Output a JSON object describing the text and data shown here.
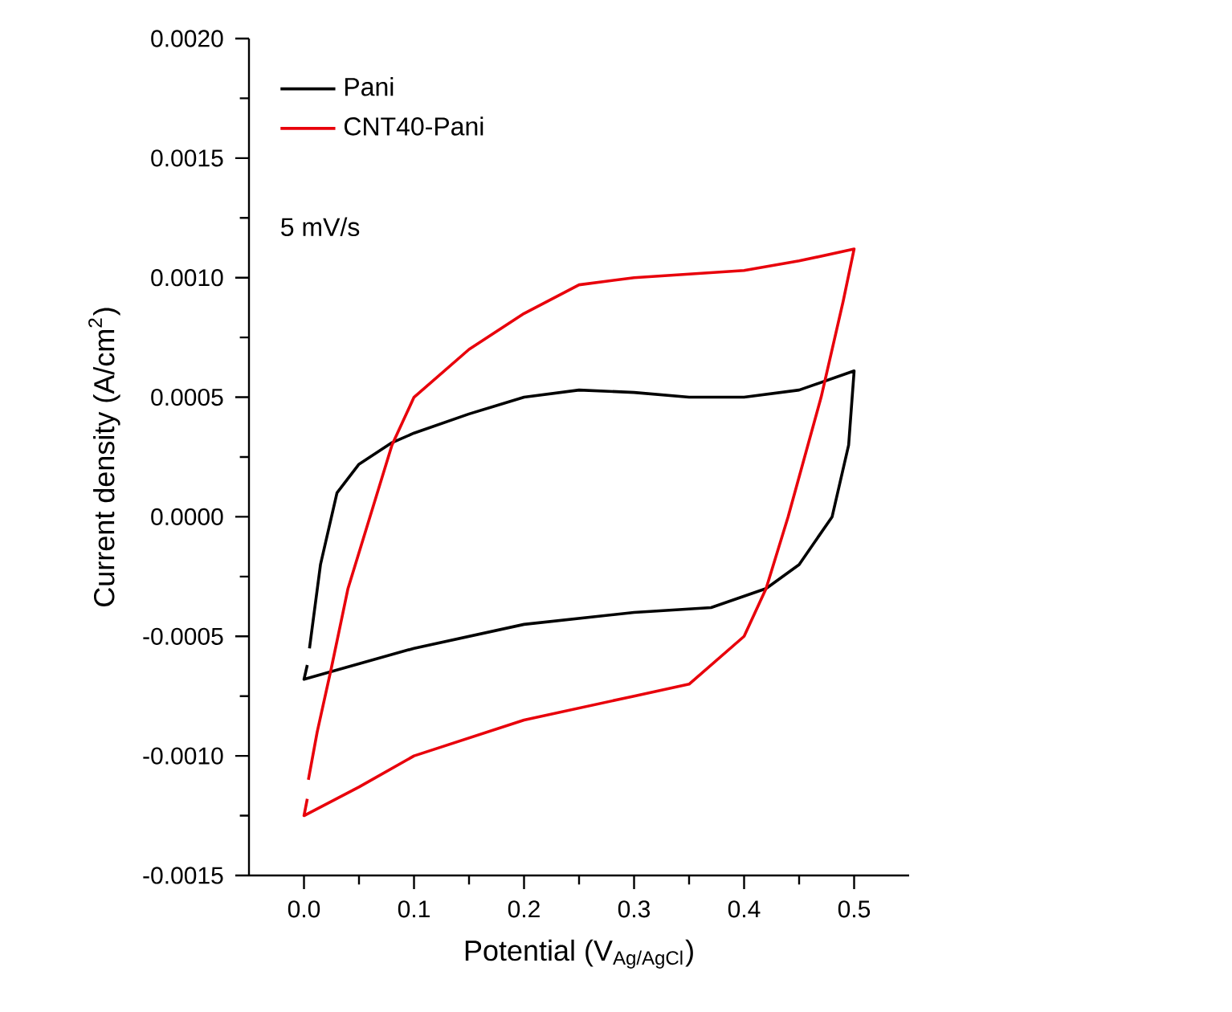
{
  "chart_data": {
    "type": "line",
    "xlabel": "Potential (V$_{Ag/AgCl}$)",
    "ylabel": "Current density (A/cm$^{2}$)",
    "annotations": [
      "5 mV/s"
    ],
    "xlim": [
      -0.05,
      0.55
    ],
    "xticks": [
      {
        "value": 0,
        "label": "0.0"
      },
      0.1,
      0.2,
      0.3,
      0.4,
      0.5
    ],
    "ylim": [
      -0.0015,
      0.002
    ],
    "yticks": [
      {
        "value": -0.0015,
        "label": "-0.0015"
      },
      {
        "value": -0.001,
        "label": "-0.0010"
      },
      {
        "value": -0.0005,
        "label": "-0.0005"
      },
      {
        "value": 0,
        "label": "0.0000"
      },
      {
        "value": 0.0005,
        "label": "0.0005"
      },
      {
        "value": 0.001,
        "label": "0.0010"
      },
      {
        "value": 0.0015,
        "label": "0.0015"
      },
      {
        "value": 0.002,
        "label": "0.0020"
      }
    ],
    "legend": "top left",
    "grid": false,
    "marker": "none",
    "line_style": "solid",
    "series": [
      {
        "name": "Pani",
        "color": "#000000",
        "x": [
          0.003,
          0.0,
          0.1,
          0.2,
          0.3,
          0.37,
          0.42,
          0.45,
          0.48,
          0.495,
          0.5,
          0.45,
          0.4,
          0.35,
          0.3,
          0.25,
          0.2,
          0.15,
          0.1,
          0.08,
          0.05,
          0.03,
          0.015,
          0.005
        ],
        "values": [
          -0.00062,
          -0.00068,
          -0.00055,
          -0.00045,
          -0.0004,
          -0.00038,
          -0.0003,
          -0.0002,
          0.0,
          0.0003,
          0.00061,
          0.00053,
          0.0005,
          0.0005,
          0.00052,
          0.00053,
          0.0005,
          0.00043,
          0.00035,
          0.00031,
          0.00022,
          0.0001,
          -0.0002,
          -0.00055
        ]
      },
      {
        "name": "CNT40-Pani",
        "color": "#e8000b",
        "x": [
          0.003,
          0.0,
          0.05,
          0.1,
          0.2,
          0.3,
          0.35,
          0.4,
          0.42,
          0.44,
          0.47,
          0.49,
          0.5,
          0.45,
          0.4,
          0.3,
          0.25,
          0.2,
          0.15,
          0.1,
          0.08,
          0.06,
          0.04,
          0.025,
          0.012,
          0.004
        ],
        "values": [
          -0.00118,
          -0.00125,
          -0.00113,
          -0.001,
          -0.00085,
          -0.00075,
          -0.0007,
          -0.0005,
          -0.0003,
          0.0,
          0.0005,
          0.0009,
          0.00112,
          0.00107,
          0.00103,
          0.001,
          0.00097,
          0.00085,
          0.0007,
          0.0005,
          0.0003,
          0.0,
          -0.0003,
          -0.00063,
          -0.0009,
          -0.0011
        ]
      }
    ]
  }
}
